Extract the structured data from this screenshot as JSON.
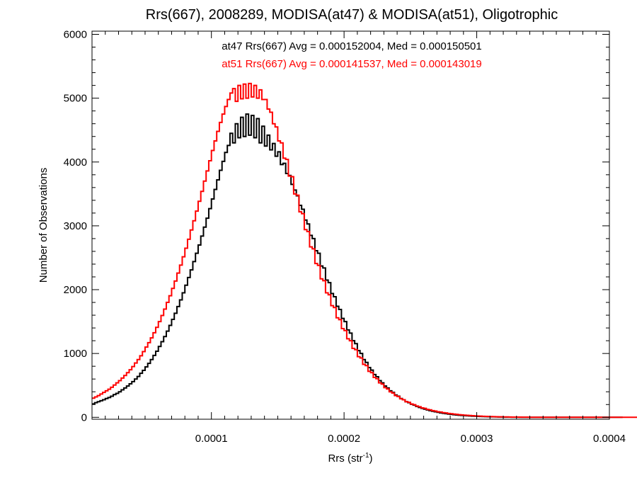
{
  "chart_data": {
    "type": "histogram-step",
    "title": "Rrs(667), 2008289, MODISA(at47) & MODISA(at51), Oligotrophic",
    "xlabel": "Rrs (str",
    "xlabel_sup": "-1",
    "xlabel_suffix": ")",
    "ylabel": "Number of Observations",
    "xlim": [
      1e-05,
      0.0004
    ],
    "ylim": [
      -30,
      6050
    ],
    "x_ticks": [
      0.0001,
      0.0002,
      0.0003,
      0.0004
    ],
    "x_tick_labels": [
      "0.0001",
      "0.0002",
      "0.0003",
      "0.0004"
    ],
    "y_ticks": [
      0,
      1000,
      2000,
      3000,
      4000,
      5000,
      6000
    ],
    "y_tick_labels": [
      "0",
      "1000",
      "2000",
      "3000",
      "4000",
      "5000",
      "6000"
    ],
    "grid": false,
    "bin_start": 1e-05,
    "bin_width": 2e-06,
    "series": [
      {
        "name": "at47",
        "color": "#000000",
        "stats": "at47 Rrs(667) Avg = 0.000152004, Med = 0.000150501",
        "values": [
          210,
          230,
          245,
          260,
          275,
          295,
          310,
          330,
          355,
          375,
          400,
          430,
          460,
          490,
          525,
          560,
          600,
          640,
          690,
          735,
          790,
          845,
          905,
          970,
          1035,
          1110,
          1185,
          1265,
          1350,
          1440,
          1535,
          1630,
          1735,
          1840,
          1950,
          2070,
          2190,
          2310,
          2440,
          2570,
          2700,
          2840,
          2980,
          3120,
          3270,
          3420,
          3570,
          3720,
          3870,
          4010,
          4150,
          4260,
          4450,
          4300,
          4600,
          4380,
          4700,
          4400,
          4750,
          4420,
          4730,
          4380,
          4680,
          4300,
          4560,
          4250,
          4420,
          4190,
          4290,
          4090,
          4160,
          3960,
          3980,
          3820,
          3790,
          3650,
          3560,
          3470,
          3320,
          3260,
          3090,
          3030,
          2850,
          2800,
          2610,
          2570,
          2370,
          2340,
          2150,
          2110,
          1940,
          1890,
          1740,
          1690,
          1550,
          1500,
          1370,
          1320,
          1200,
          1155,
          1045,
          1000,
          905,
          860,
          780,
          740,
          670,
          635,
          575,
          540,
          490,
          460,
          415,
          390,
          350,
          330,
          295,
          275,
          245,
          230,
          205,
          190,
          170,
          155,
          140,
          128,
          116,
          105,
          95,
          86,
          78,
          70,
          63,
          57,
          51,
          46,
          41,
          37,
          33,
          30,
          27,
          24,
          21,
          19,
          17,
          15,
          13,
          12,
          10,
          9,
          8,
          7,
          6,
          5,
          5,
          4,
          3,
          3,
          2,
          2,
          2,
          1,
          1,
          1,
          1,
          0,
          0,
          0,
          0,
          0,
          0,
          0,
          0,
          0,
          0,
          0,
          0,
          0,
          0,
          0,
          0,
          0,
          0,
          0,
          0,
          0,
          0,
          0,
          0,
          0,
          0,
          0,
          0,
          0,
          0,
          0,
          0,
          0,
          0,
          0
        ]
      },
      {
        "name": "at51",
        "color": "#ff0000",
        "stats": "at51 Rrs(667) Avg = 0.000141537, Med = 0.000143019",
        "values": [
          300,
          320,
          340,
          365,
          390,
          415,
          440,
          470,
          505,
          540,
          575,
          615,
          655,
          700,
          745,
          795,
          850,
          905,
          965,
          1030,
          1100,
          1170,
          1245,
          1325,
          1410,
          1500,
          1595,
          1695,
          1800,
          1905,
          2020,
          2135,
          2260,
          2385,
          2515,
          2650,
          2790,
          2935,
          3080,
          3230,
          3385,
          3540,
          3700,
          3860,
          4020,
          4180,
          4330,
          4480,
          4620,
          4750,
          4870,
          4980,
          5080,
          5150,
          4950,
          5200,
          4990,
          5220,
          5000,
          5230,
          5020,
          5200,
          5000,
          5130,
          4980,
          4980,
          4830,
          4780,
          4600,
          4550,
          4330,
          4300,
          4060,
          4040,
          3780,
          3770,
          3500,
          3480,
          3220,
          3190,
          2940,
          2910,
          2670,
          2640,
          2410,
          2380,
          2170,
          2140,
          1950,
          1920,
          1750,
          1720,
          1560,
          1530,
          1390,
          1360,
          1230,
          1200,
          1080,
          1060,
          950,
          930,
          830,
          810,
          720,
          700,
          625,
          605,
          540,
          520,
          465,
          445,
          400,
          380,
          340,
          325,
          290,
          275,
          245,
          235,
          208,
          198,
          176,
          166,
          148,
          140,
          124,
          117,
          104,
          98,
          87,
          82,
          72,
          68,
          60,
          56,
          50,
          46,
          41,
          38,
          34,
          31,
          28,
          25,
          23,
          20,
          18,
          16,
          15,
          13,
          12,
          10,
          9,
          8,
          7,
          6,
          6,
          5,
          4,
          4,
          3,
          3,
          2,
          2,
          2,
          1,
          1,
          1,
          1,
          0,
          0,
          0,
          0,
          0,
          0,
          0,
          0,
          0,
          0,
          0,
          0,
          0,
          0,
          0,
          0,
          0,
          0,
          0,
          0,
          0,
          0,
          0,
          0,
          0,
          0,
          0,
          0,
          0,
          0,
          0,
          0,
          0,
          0,
          0,
          0,
          0,
          0
        ]
      }
    ]
  }
}
